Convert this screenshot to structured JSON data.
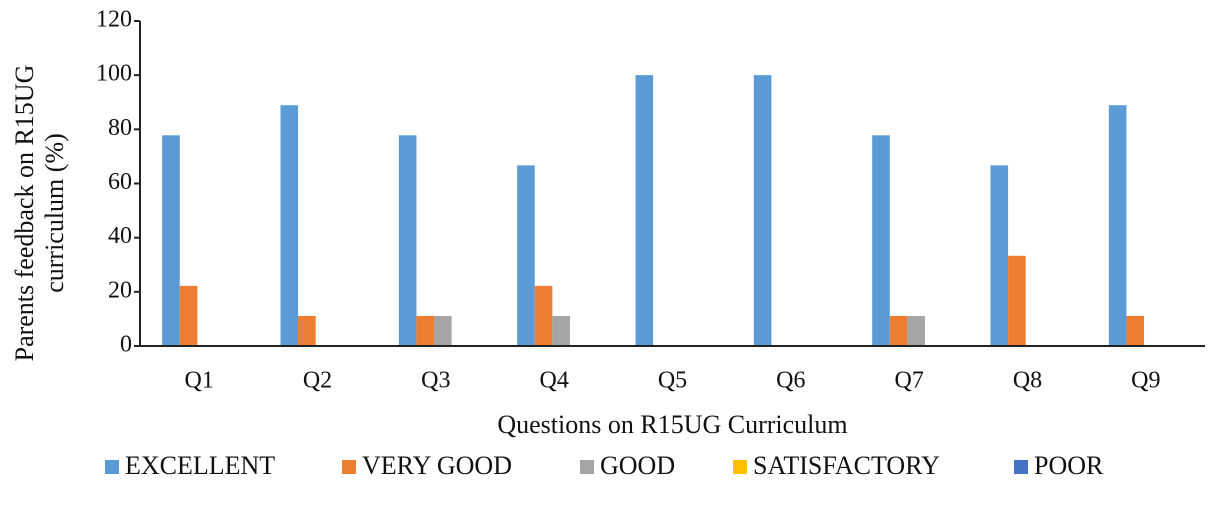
{
  "chart_data": {
    "type": "bar",
    "xlabel": "Questions on R15UG Curriculum",
    "ylabel": "Parents feedback on R15UG curriculum (%)",
    "categories": [
      "Q1",
      "Q2",
      "Q3",
      "Q4",
      "Q5",
      "Q6",
      "Q7",
      "Q8",
      "Q9"
    ],
    "series": [
      {
        "name": "EXCELLENT",
        "color": "#5b9bd5",
        "values": [
          77.8,
          88.9,
          77.8,
          66.7,
          100,
          100,
          77.8,
          66.7,
          88.9
        ]
      },
      {
        "name": "VERY GOOD",
        "color": "#ed7d31",
        "values": [
          22.2,
          11.1,
          11.1,
          22.2,
          0,
          0,
          11.1,
          33.3,
          11.1
        ]
      },
      {
        "name": "GOOD",
        "color": "#a5a5a5",
        "values": [
          0,
          0,
          11.1,
          11.1,
          0,
          0,
          11.1,
          0,
          0
        ]
      },
      {
        "name": "SATISFACTORY",
        "color": "#ffc000",
        "values": [
          0,
          0,
          0,
          0,
          0,
          0,
          0,
          0,
          0
        ]
      },
      {
        "name": "POOR",
        "color": "#4472c4",
        "values": [
          0,
          0,
          0,
          0,
          0,
          0,
          0,
          0,
          0
        ]
      }
    ],
    "ylim": [
      0,
      120
    ],
    "yticks": [
      0,
      20,
      40,
      60,
      80,
      100,
      120
    ],
    "grid": false,
    "legend": "bottom"
  }
}
